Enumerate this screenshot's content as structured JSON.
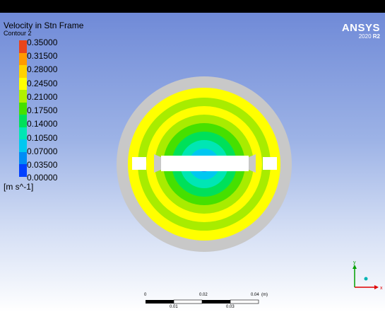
{
  "legend": {
    "title": "Velocity in Stn Frame",
    "subtitle": "Contour 2",
    "unit": "[m s^-1]",
    "ticks": [
      "0.35000",
      "0.31500",
      "0.28000",
      "0.24500",
      "0.21000",
      "0.17500",
      "0.14000",
      "0.10500",
      "0.07000",
      "0.03500",
      "0.00000"
    ],
    "colors": [
      "#e8451c",
      "#ff9a00",
      "#ffd200",
      "#ffff00",
      "#b0f000",
      "#46e000",
      "#00e05a",
      "#00e6b4",
      "#00c8f0",
      "#008cf5",
      "#0040ff"
    ]
  },
  "logo": {
    "name": "ANSYS",
    "version_year": "2020",
    "version_release": "R2"
  },
  "scale_bar": {
    "top_labels": [
      "0",
      "0.02",
      "0.04"
    ],
    "unit": "(m)",
    "bottom_labels": [
      "0.01",
      "0.03"
    ]
  },
  "axes": {
    "y_label": "y",
    "x_label": "x",
    "y_color": "#00a000",
    "x_color": "#e00000",
    "z_color": "#00b4b4"
  },
  "contour": {
    "outer_ring_color": "#c8c8c8",
    "band_colors": [
      "#ffff00",
      "#a8ec00",
      "#ffff00",
      "#a8ec00",
      "#46e000",
      "#00e05a",
      "#00e6b4",
      "#00c8f0",
      "#008cf5"
    ]
  }
}
